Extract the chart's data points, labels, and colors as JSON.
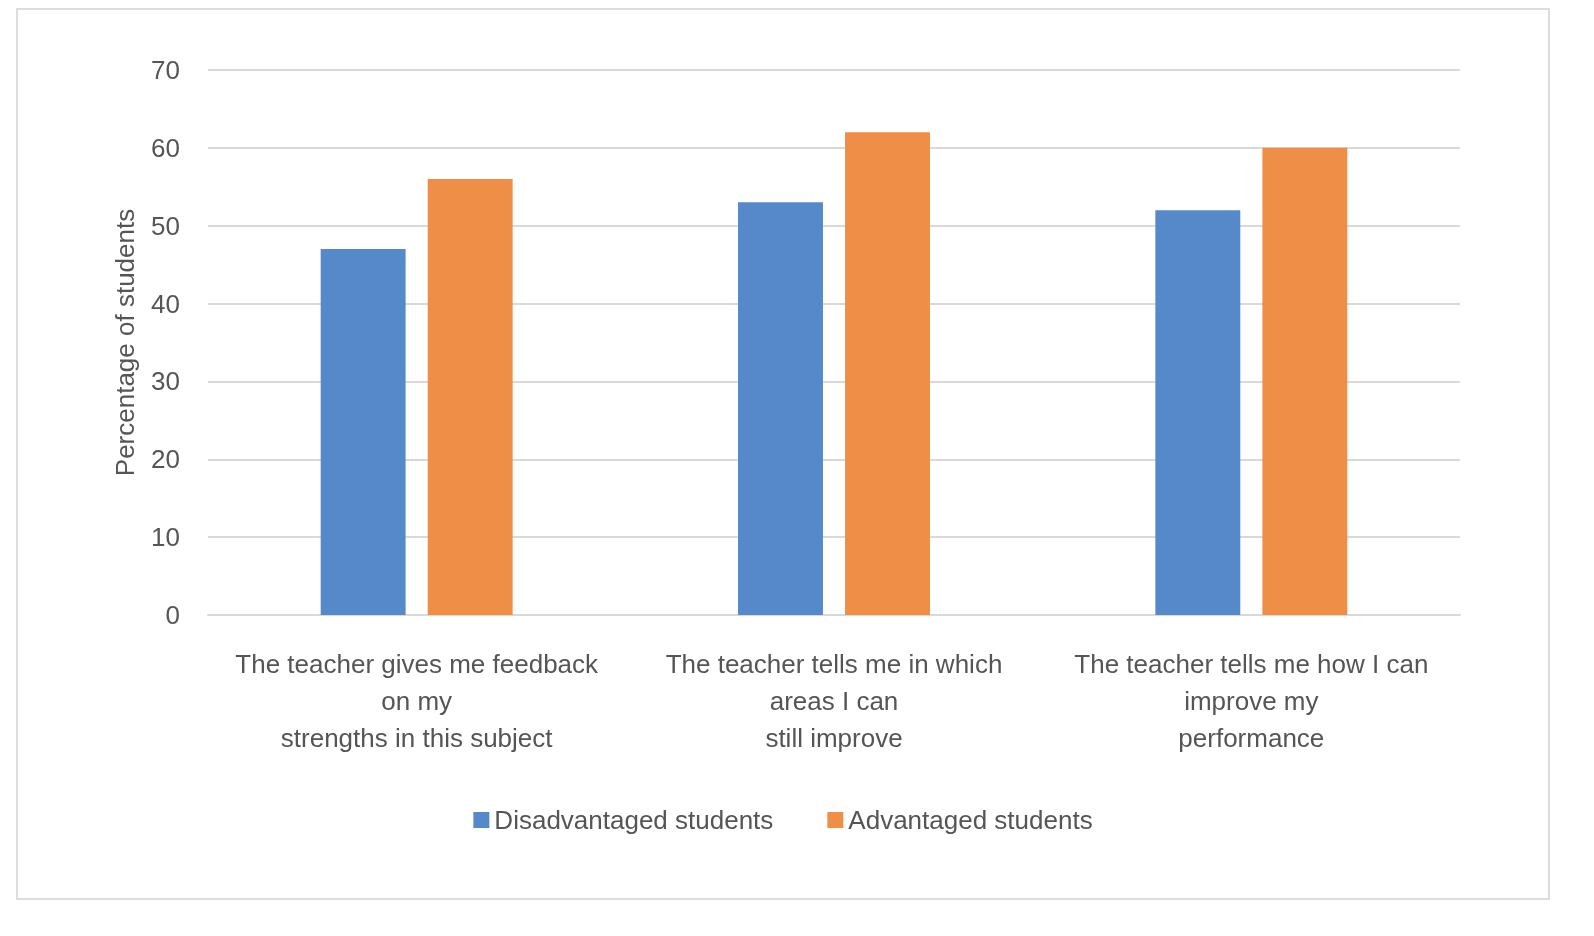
{
  "chart_data": {
    "type": "bar",
    "ylabel": "Percentage of students",
    "categories": [
      "The teacher gives me feedback\non my\nstrengths in this subject",
      "The teacher tells me in which\nareas I can\nstill improve",
      "The teacher tells me how I can\nimprove my\nperformance"
    ],
    "series": [
      {
        "name": "Disadvantaged students",
        "color": "#5589ca",
        "values": [
          47,
          53,
          52
        ]
      },
      {
        "name": "Advantaged students",
        "color": "#ef8f47",
        "values": [
          56,
          62,
          60
        ]
      }
    ],
    "ylim": [
      0,
      70
    ],
    "yticks": [
      0,
      10,
      20,
      30,
      40,
      50,
      60,
      70
    ],
    "grid": "y",
    "legend": "bottom"
  }
}
